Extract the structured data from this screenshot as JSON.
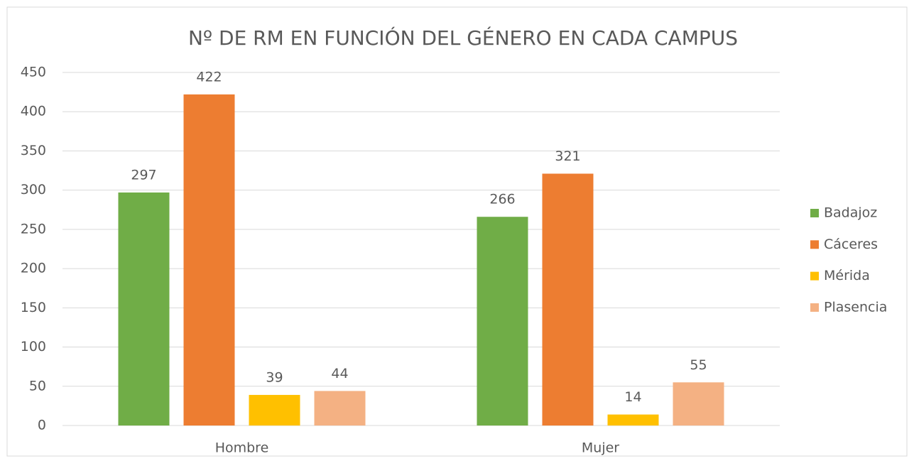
{
  "chart_data": {
    "type": "bar",
    "title": "Nº DE RM EN FUNCIÓN DEL GÉNERO EN CADA CAMPUS",
    "categories": [
      "Hombre",
      "Mujer"
    ],
    "series": [
      {
        "name": "Badajoz",
        "color": "#70ad47",
        "values": [
          297,
          266
        ]
      },
      {
        "name": "Cáceres",
        "color": "#ed7d31",
        "values": [
          422,
          321
        ]
      },
      {
        "name": "Mérida",
        "color": "#ffc000",
        "values": [
          39,
          14
        ]
      },
      {
        "name": "Plasencia",
        "color": "#f4b183",
        "values": [
          44,
          55
        ]
      }
    ],
    "ylim": [
      0,
      450
    ],
    "yticks": [
      0,
      50,
      100,
      150,
      200,
      250,
      300,
      350,
      400,
      450
    ],
    "grid": true,
    "legend": "right"
  }
}
